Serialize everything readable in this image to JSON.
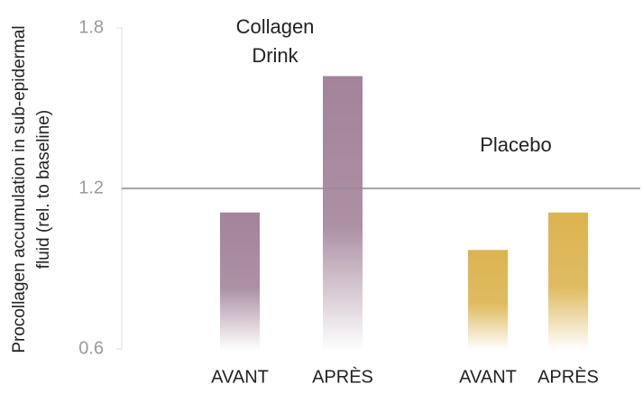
{
  "chart_data": {
    "type": "bar",
    "y_label": "Procollagen accumulation in sub-epidermal fluid (rel. to baseline)",
    "categories": [
      "AVANT",
      "APRÈS"
    ],
    "series": [
      {
        "name": "Collagen Drink",
        "color": "#a3849a",
        "values": [
          1.11,
          1.62
        ]
      },
      {
        "name": "Placebo",
        "color": "#dcb450",
        "values": [
          0.97,
          1.11
        ]
      }
    ],
    "ylim": [
      0.6,
      1.8
    ],
    "yticks": [
      0.6,
      1.2,
      1.8
    ],
    "grid": true
  }
}
